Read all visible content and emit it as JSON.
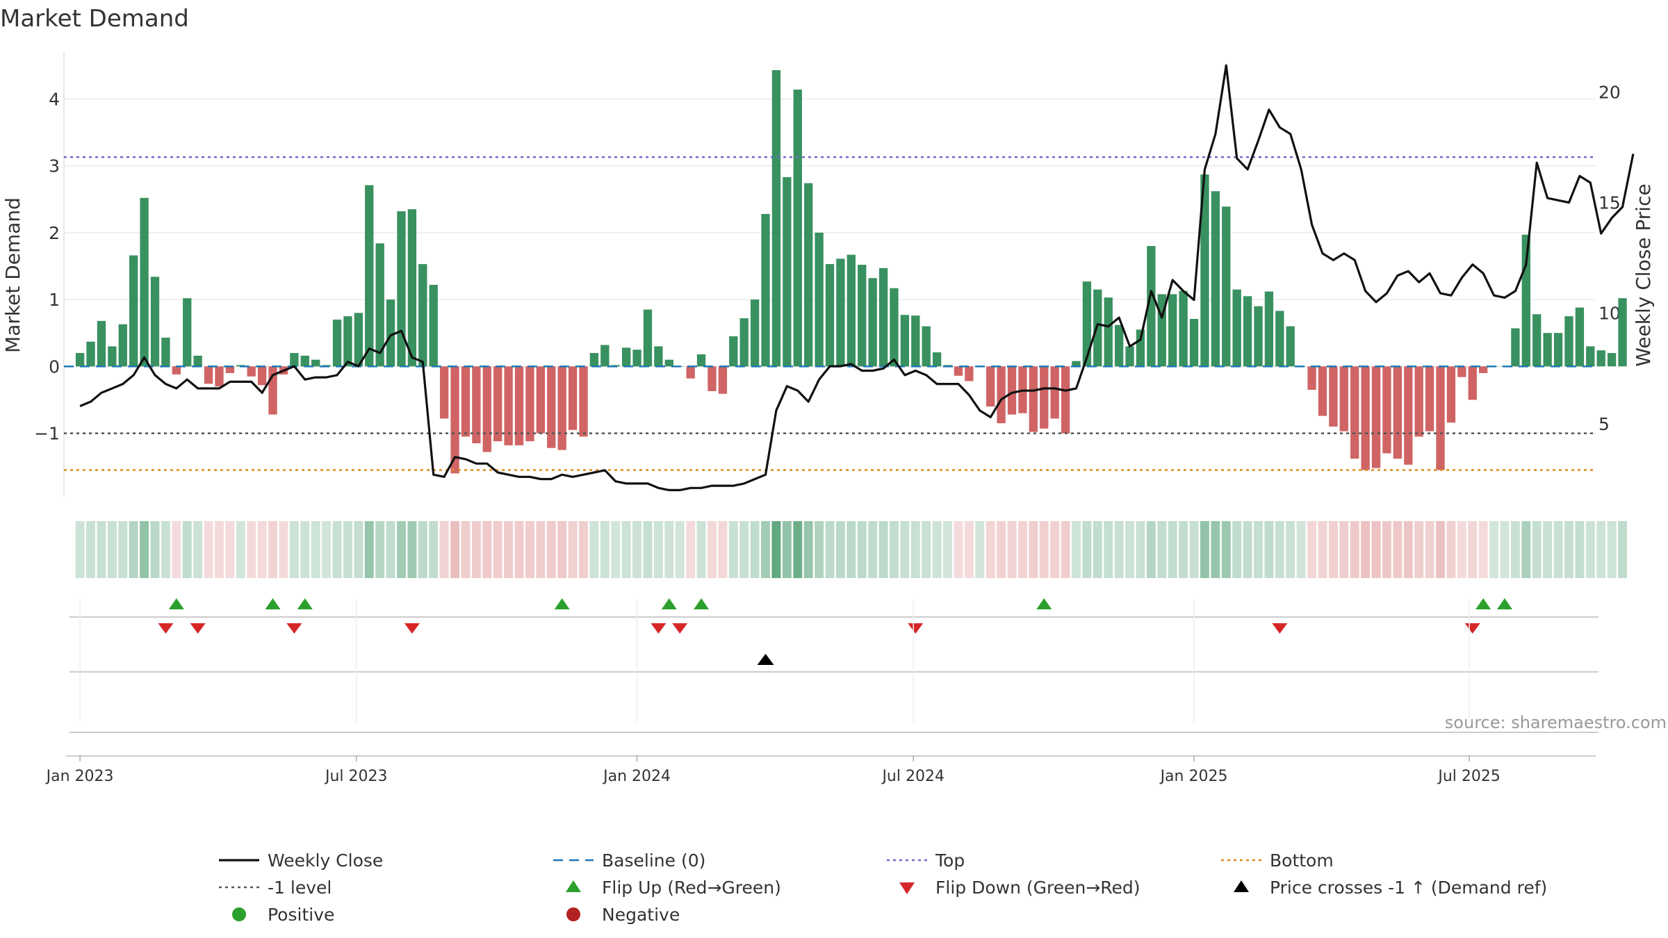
{
  "chart_data": {
    "type": "bar",
    "title": "Market Demand",
    "ylabel": "Market Demand",
    "y2label": "Weekly Close Price",
    "ylim": [
      -1.95,
      4.7
    ],
    "y2lim": [
      1.7,
      21.8
    ],
    "yticks": [
      4,
      3,
      2,
      1,
      0,
      -1
    ],
    "ytick_labels": [
      "4",
      "3",
      "2",
      "1",
      "0",
      "−1"
    ],
    "y2ticks": [
      20,
      15,
      10,
      5
    ],
    "y2tick_labels": [
      "20",
      "15",
      "10",
      "5"
    ],
    "x_range_weeks": [
      -1.5,
      141.5
    ],
    "xticks": [
      {
        "week": 0,
        "label": "Jan 2023"
      },
      {
        "week": 25.8,
        "label": "Jul 2023"
      },
      {
        "week": 52,
        "label": "Jan 2024"
      },
      {
        "week": 77.8,
        "label": "Jul 2024"
      },
      {
        "week": 104,
        "label": "Jan 2025"
      },
      {
        "week": 129.7,
        "label": "Jul 2025"
      }
    ],
    "top_level": 3.13,
    "bottom_level": -1.55,
    "minus_one_level": -1,
    "baseline": 0,
    "demand": [
      0.2,
      0.37,
      0.68,
      0.3,
      0.63,
      1.66,
      2.52,
      1.34,
      0.43,
      -0.12,
      1.02,
      0.16,
      -0.26,
      -0.3,
      -0.1,
      0.02,
      -0.15,
      -0.28,
      -0.72,
      -0.12,
      0.2,
      0.16,
      0.1,
      0.02,
      0.7,
      0.75,
      0.8,
      2.71,
      1.84,
      1.0,
      2.32,
      2.35,
      1.53,
      1.22,
      -0.78,
      -1.6,
      -1.05,
      -1.15,
      -1.28,
      -1.12,
      -1.18,
      -1.18,
      -1.12,
      -1.0,
      -1.22,
      -1.25,
      -0.95,
      -1.05,
      0.2,
      0.32,
      0.02,
      0.28,
      0.25,
      0.85,
      0.3,
      0.1,
      0.0,
      -0.18,
      0.18,
      -0.37,
      -0.41,
      0.45,
      0.72,
      1.0,
      2.28,
      4.43,
      2.83,
      4.14,
      2.74,
      2.0,
      1.53,
      1.61,
      1.67,
      1.52,
      1.32,
      1.47,
      1.17,
      0.77,
      0.76,
      0.6,
      0.21,
      0.02,
      -0.14,
      -0.22,
      0.0,
      -0.6,
      -0.85,
      -0.72,
      -0.7,
      -0.98,
      -0.93,
      -0.78,
      -1.0,
      0.08,
      1.27,
      1.15,
      1.03,
      0.62,
      0.3,
      0.55,
      1.8,
      1.08,
      1.08,
      1.13,
      0.71,
      2.87,
      2.62,
      2.39,
      1.15,
      1.05,
      0.9,
      1.12,
      0.83,
      0.6,
      0.0,
      -0.35,
      -0.74,
      -0.9,
      -0.97,
      -1.38,
      -1.55,
      -1.52,
      -1.3,
      -1.38,
      -1.47,
      -1.05,
      -0.97,
      -1.55,
      -0.84,
      -0.16,
      -0.5,
      -0.1,
      0.0,
      0.0,
      0.57,
      1.97,
      0.78,
      0.5,
      0.5,
      0.75,
      0.88,
      0.3,
      0.24,
      0.2,
      1.02
    ],
    "close": [
      5.8,
      6.0,
      6.4,
      6.6,
      6.8,
      7.2,
      8.0,
      7.2,
      6.8,
      6.6,
      7.0,
      6.6,
      6.6,
      6.6,
      6.9,
      6.9,
      6.9,
      6.4,
      7.2,
      7.4,
      7.6,
      7.0,
      7.1,
      7.1,
      7.2,
      7.8,
      7.6,
      8.4,
      8.2,
      9.0,
      9.2,
      8.0,
      7.8,
      2.7,
      2.6,
      3.5,
      3.4,
      3.2,
      3.2,
      2.8,
      2.7,
      2.6,
      2.6,
      2.5,
      2.5,
      2.7,
      2.6,
      2.7,
      2.8,
      2.9,
      2.4,
      2.3,
      2.3,
      2.3,
      2.1,
      2.0,
      2.0,
      2.1,
      2.1,
      2.2,
      2.2,
      2.2,
      2.3,
      2.5,
      2.7,
      5.6,
      6.7,
      6.5,
      6.0,
      7.0,
      7.6,
      7.6,
      7.7,
      7.4,
      7.4,
      7.5,
      7.9,
      7.2,
      7.4,
      7.2,
      6.8,
      6.8,
      6.8,
      6.3,
      5.6,
      5.3,
      6.1,
      6.4,
      6.5,
      6.5,
      6.6,
      6.6,
      6.5,
      6.6,
      8.0,
      9.5,
      9.4,
      9.8,
      8.5,
      8.8,
      11.0,
      9.8,
      11.5,
      11.0,
      10.6,
      16.5,
      18.1,
      21.2,
      17.0,
      16.5,
      17.8,
      19.2,
      18.4,
      18.1,
      16.5,
      14.0,
      12.7,
      12.4,
      12.7,
      12.4,
      11.0,
      10.5,
      10.9,
      11.7,
      11.9,
      11.4,
      11.8,
      10.9,
      10.8,
      11.6,
      12.2,
      11.8,
      10.8,
      10.7,
      11.0,
      12.2,
      16.8,
      15.2,
      15.1,
      15.0,
      16.2,
      15.9,
      13.6,
      14.3,
      14.8,
      17.2
    ],
    "intensity_strip": [
      0.24,
      0.26,
      0.27,
      0.26,
      0.27,
      0.36,
      0.52,
      0.33,
      0.26,
      0.22,
      0.3,
      0.25,
      0.23,
      0.23,
      0.22,
      0.22,
      0.22,
      0.23,
      0.27,
      0.22,
      0.25,
      0.25,
      0.24,
      0.22,
      0.27,
      0.27,
      0.28,
      0.5,
      0.35,
      0.3,
      0.45,
      0.46,
      0.32,
      0.29,
      0.27,
      0.4,
      0.3,
      0.32,
      0.33,
      0.31,
      0.32,
      0.32,
      0.31,
      0.3,
      0.32,
      0.33,
      0.29,
      0.3,
      0.24,
      0.25,
      0.22,
      0.25,
      0.25,
      0.28,
      0.25,
      0.24,
      0.22,
      0.23,
      0.25,
      0.24,
      0.24,
      0.26,
      0.27,
      0.3,
      0.44,
      0.75,
      0.52,
      0.7,
      0.5,
      0.38,
      0.32,
      0.33,
      0.33,
      0.32,
      0.3,
      0.32,
      0.29,
      0.27,
      0.27,
      0.26,
      0.24,
      0.22,
      0.22,
      0.23,
      0.22,
      0.26,
      0.28,
      0.27,
      0.27,
      0.3,
      0.29,
      0.28,
      0.3,
      0.23,
      0.3,
      0.29,
      0.28,
      0.26,
      0.25,
      0.26,
      0.36,
      0.29,
      0.29,
      0.29,
      0.27,
      0.52,
      0.5,
      0.47,
      0.3,
      0.29,
      0.28,
      0.3,
      0.27,
      0.26,
      0.22,
      0.25,
      0.27,
      0.29,
      0.3,
      0.33,
      0.38,
      0.37,
      0.34,
      0.34,
      0.36,
      0.3,
      0.29,
      0.38,
      0.29,
      0.23,
      0.26,
      0.22,
      0.22,
      0.22,
      0.26,
      0.4,
      0.28,
      0.26,
      0.26,
      0.28,
      0.29,
      0.25,
      0.24,
      0.24,
      0.3
    ],
    "flip_up_weeks": [
      9,
      18,
      21,
      45,
      55,
      58,
      90,
      131,
      133
    ],
    "flip_down_weeks": [
      8,
      11,
      20,
      31,
      54,
      56,
      78,
      112,
      130
    ],
    "price_cross_weeks": [
      64
    ],
    "legend": {
      "weekly_close": "Weekly Close",
      "baseline": "Baseline (0)",
      "top": "Top",
      "bottom": "Bottom",
      "minus_one": "-1 level",
      "flip_up": "Flip Up (Red→Green)",
      "flip_down": "Flip Down (Green→Red)",
      "price_cross": "Price crosses -1 ↑ (Demand ref)",
      "positive": "Positive",
      "negative": "Negative"
    },
    "source": "source: sharemaestro.com",
    "colors": {
      "positive": "#2e8b57",
      "negative": "#cd5c5c",
      "close": "#111111",
      "baseline": "#1f77b4",
      "top": "#6a6ac8",
      "bottom": "#e08c1a",
      "minus_one": "#555555",
      "flip_up": "#2ca02c",
      "flip_down": "#d62728",
      "cross": "#000000",
      "legend_positive": "#2ca02c",
      "legend_negative": "#b22222"
    }
  }
}
